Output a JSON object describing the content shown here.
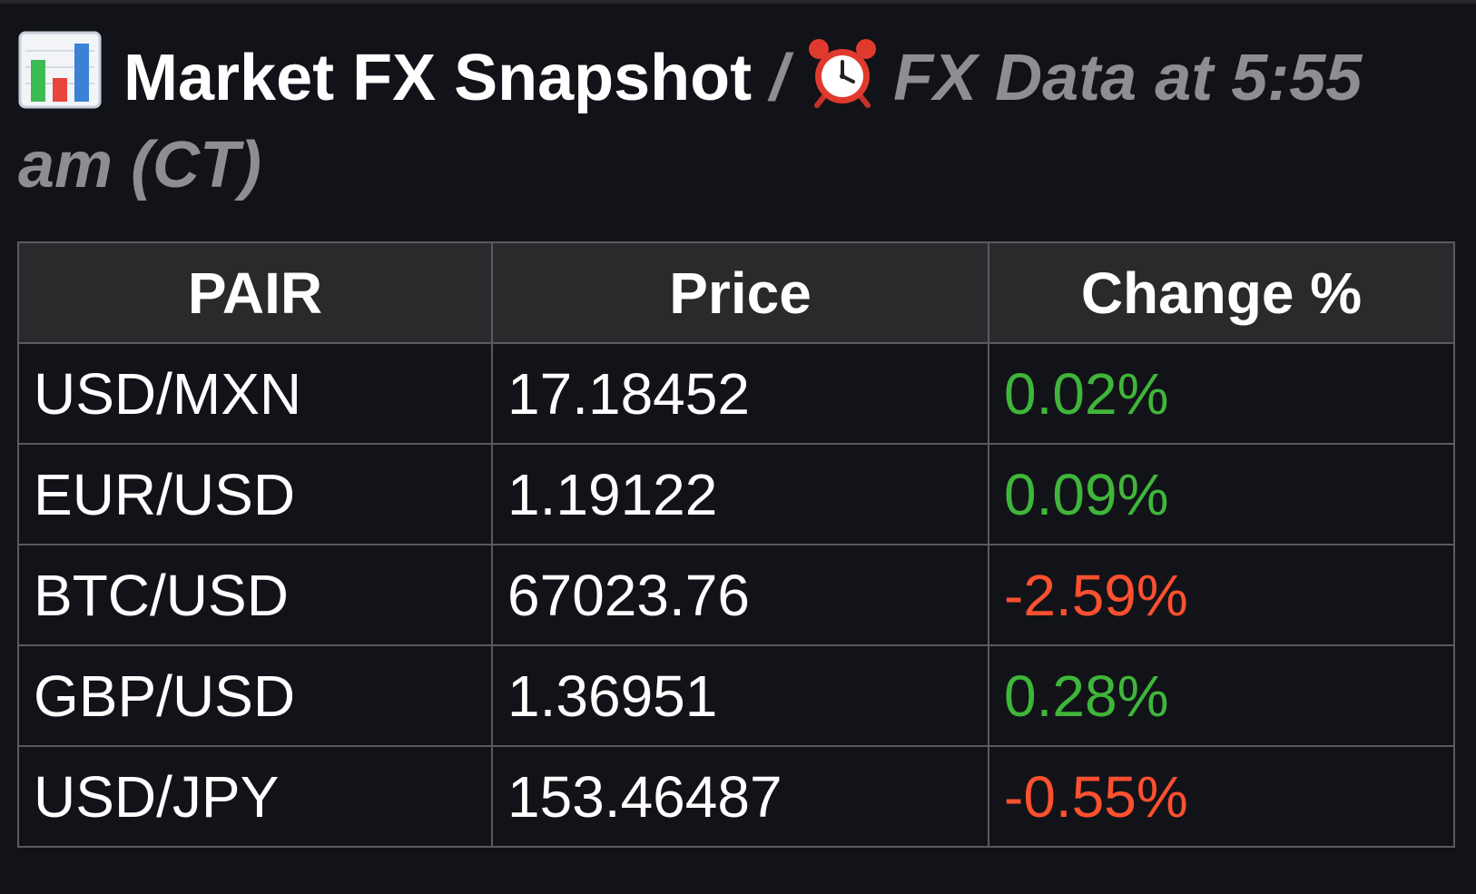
{
  "header": {
    "title": "Market FX Snapshot",
    "separator": "/",
    "subtitle": "FX Data at 5:55 am (CT)",
    "title_icon": "bar-chart-icon",
    "subtitle_icon": "alarm-clock-icon"
  },
  "table": {
    "headers": [
      "PAIR",
      "Price",
      "Change %"
    ],
    "rows": [
      {
        "pair": "USD/MXN",
        "price": "17.18452",
        "change": "0.02%",
        "direction": "up"
      },
      {
        "pair": "EUR/USD",
        "price": "1.19122",
        "change": "0.09%",
        "direction": "up"
      },
      {
        "pair": "BTC/USD",
        "price": "67023.76",
        "change": "-2.59%",
        "direction": "down"
      },
      {
        "pair": "GBP/USD",
        "price": "1.36951",
        "change": "0.28%",
        "direction": "up"
      },
      {
        "pair": "USD/JPY",
        "price": "153.46487",
        "change": "-0.55%",
        "direction": "down"
      }
    ]
  },
  "colors": {
    "background": "#121318",
    "header_bg": "#2a2a2c",
    "border": "#5a5b60",
    "positive": "#3fb63a",
    "negative": "#ff5030",
    "muted_text": "#8e8e92"
  }
}
